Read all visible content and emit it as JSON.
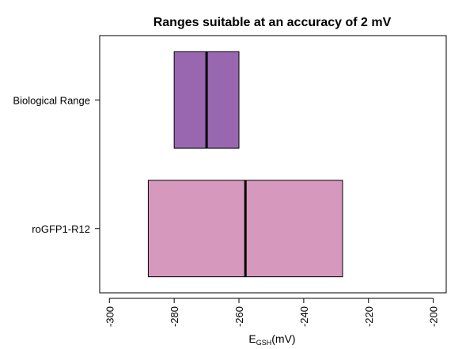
{
  "chart_data": {
    "type": "boxplot",
    "orientation": "horizontal",
    "title": "Ranges suitable at an accuracy of 2 mV",
    "xlabel": {
      "main": "E",
      "subscript": "GSH",
      "suffix": "(mV)"
    },
    "ylabel": "",
    "xlim": [
      -303,
      -196
    ],
    "xticks": [
      -300,
      -280,
      -260,
      -240,
      -220,
      -200
    ],
    "grid": false,
    "series": [
      {
        "name": "Biological Range",
        "min": -280,
        "median": -270,
        "max": -260,
        "color": "#9966b0"
      },
      {
        "name": "roGFP1-R12",
        "min": -288,
        "median": -258,
        "max": -228,
        "color": "#d699bd"
      }
    ]
  }
}
